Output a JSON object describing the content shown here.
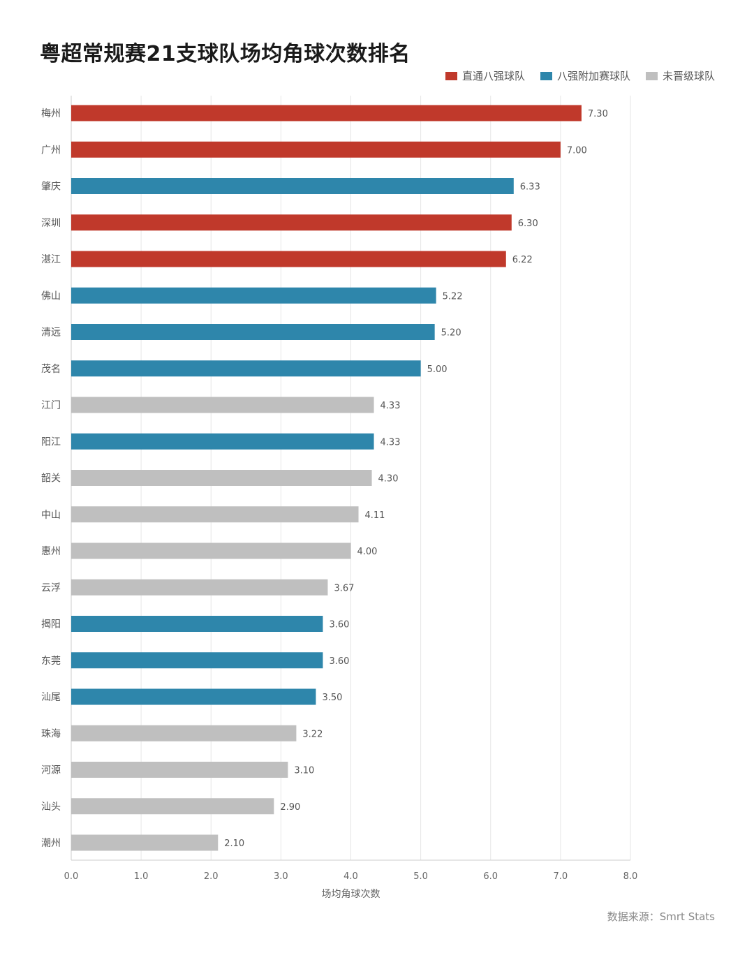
{
  "title": "粤超常规赛21支球队场均角球次数排名",
  "legend": [
    {
      "label": "直通八强球队",
      "color": "#c0392b"
    },
    {
      "label": "八强附加赛球队",
      "color": "#2e86ab"
    },
    {
      "label": "未晋级球队",
      "color": "#bfbfbf"
    }
  ],
  "source": "数据来源：Smrt Stats",
  "chart_data": {
    "type": "bar",
    "orientation": "horizontal",
    "title": "粤超常规赛21支球队场均角球次数排名",
    "xlabel": "场均角球次数",
    "ylabel": "",
    "xlim": [
      0,
      8
    ],
    "xticks": [
      "0.0",
      "1.0",
      "2.0",
      "3.0",
      "4.0",
      "5.0",
      "6.0",
      "7.0",
      "8.0"
    ],
    "grid": "vertical",
    "legend_position": "top-right",
    "categories": [
      "梅州",
      "广州",
      "肇庆",
      "深圳",
      "湛江",
      "佛山",
      "清远",
      "茂名",
      "江门",
      "阳江",
      "韶关",
      "中山",
      "惠州",
      "云浮",
      "揭阳",
      "东莞",
      "汕尾",
      "珠海",
      "河源",
      "汕头",
      "潮州"
    ],
    "values": [
      7.3,
      7.0,
      6.33,
      6.3,
      6.22,
      5.22,
      5.2,
      5.0,
      4.33,
      4.33,
      4.3,
      4.11,
      4.0,
      3.67,
      3.6,
      3.6,
      3.5,
      3.22,
      3.1,
      2.9,
      2.1
    ],
    "value_labels": [
      "7.30",
      "7.00",
      "6.33",
      "6.30",
      "6.22",
      "5.22",
      "5.20",
      "5.00",
      "4.33",
      "4.33",
      "4.30",
      "4.11",
      "4.00",
      "3.67",
      "3.60",
      "3.60",
      "3.50",
      "3.22",
      "3.10",
      "2.90",
      "2.10"
    ],
    "groups": [
      0,
      0,
      1,
      0,
      0,
      1,
      1,
      1,
      2,
      1,
      2,
      2,
      2,
      2,
      1,
      1,
      1,
      2,
      2,
      2,
      2
    ]
  }
}
